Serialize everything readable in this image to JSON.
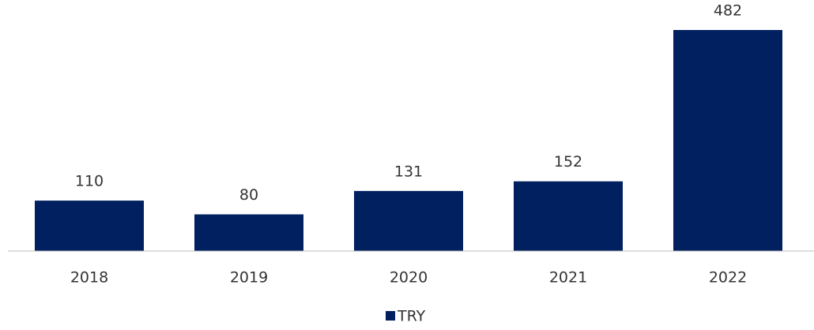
{
  "chart_data": {
    "type": "bar",
    "categories": [
      "2018",
      "2019",
      "2020",
      "2021",
      "2022"
    ],
    "series": [
      {
        "name": "TRY",
        "color": "#002060",
        "values": [
          110,
          80,
          131,
          152,
          482
        ]
      }
    ],
    "legend": "bottom"
  }
}
